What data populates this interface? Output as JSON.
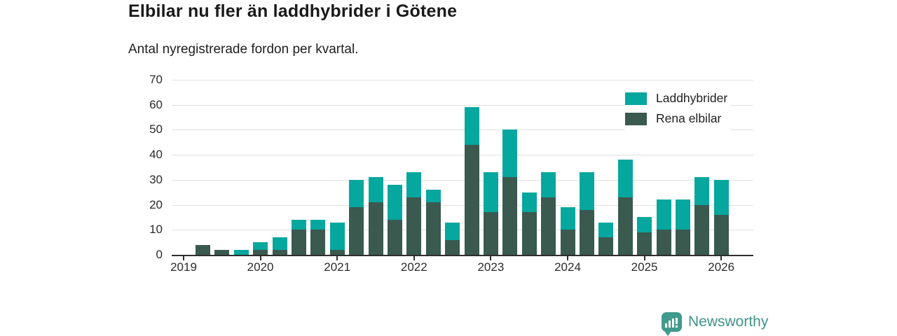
{
  "header": {
    "title": "Elbilar nu fler än laddhybrider i Götene",
    "subtitle": "Antal nyregistrerade fordon per kvartal."
  },
  "footer": {
    "brand": "Newsworthy",
    "logo_icon": "bar-chart-speech-bubble-icon",
    "brand_color": "#3f9488"
  },
  "chart_data": {
    "type": "bar",
    "stacked": true,
    "title": "Elbilar nu fler än laddhybrider i Götene",
    "subtitle": "Antal nyregistrerade fordon per kvartal.",
    "xlabel": "",
    "ylabel": "",
    "ylim": [
      0,
      70
    ],
    "yticks": [
      0,
      10,
      20,
      30,
      40,
      50,
      60,
      70
    ],
    "grid": true,
    "legend_position": "top-right",
    "categories": [
      "2019 Q1",
      "2019 Q2",
      "2019 Q3",
      "2019 Q4",
      "2020 Q1",
      "2020 Q2",
      "2020 Q3",
      "2020 Q4",
      "2021 Q1",
      "2021 Q2",
      "2021 Q3",
      "2021 Q4",
      "2022 Q1",
      "2022 Q2",
      "2022 Q3",
      "2022 Q4",
      "2023 Q1",
      "2023 Q2",
      "2023 Q3",
      "2023 Q4",
      "2024 Q1",
      "2024 Q2",
      "2024 Q3",
      "2024 Q4",
      "2025 Q1",
      "2025 Q2",
      "2025 Q3",
      "2025 Q4",
      "2026 Q1"
    ],
    "xticks": {
      "labels": [
        "2019",
        "2020",
        "2021",
        "2022",
        "2023",
        "2024",
        "2025",
        "2026"
      ],
      "category_indices": [
        0,
        4,
        8,
        12,
        16,
        20,
        24,
        28
      ]
    },
    "series": [
      {
        "name": "Rena elbilar",
        "color": "#3a594f",
        "stack_order": "bottom",
        "values": [
          0,
          4,
          2,
          0,
          2,
          2,
          10,
          10,
          2,
          19,
          21,
          14,
          23,
          21,
          6,
          44,
          17,
          31,
          17,
          23,
          10,
          18,
          7,
          23,
          9,
          10,
          10,
          20,
          16
        ]
      },
      {
        "name": "Laddhybrider",
        "color": "#06a79e",
        "stack_order": "top",
        "values": [
          0,
          0,
          0,
          2,
          3,
          5,
          4,
          4,
          11,
          11,
          10,
          14,
          10,
          5,
          7,
          15,
          16,
          19,
          8,
          10,
          9,
          15,
          6,
          15,
          6,
          12,
          12,
          11,
          14
        ]
      }
    ],
    "legend_order": [
      "Laddhybrider",
      "Rena elbilar"
    ],
    "axis_color": "#2e2e2e",
    "gridline_color": "#e0e0e0"
  }
}
